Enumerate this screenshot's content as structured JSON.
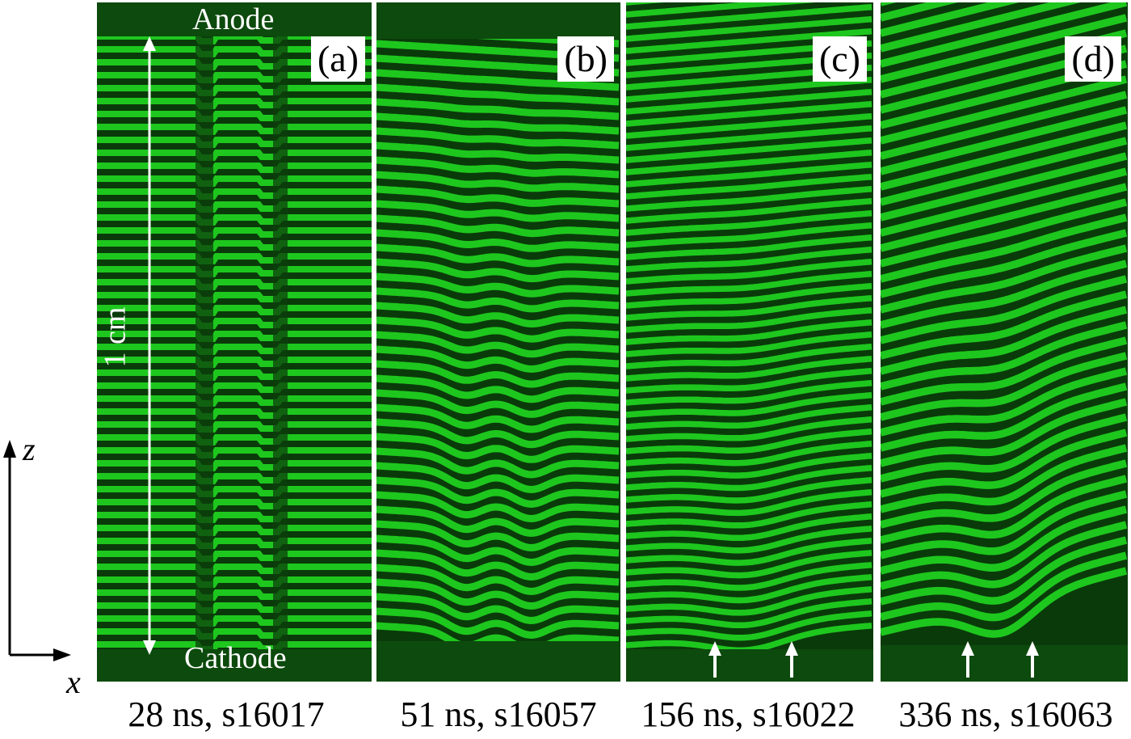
{
  "panels": [
    {
      "label": "(a)",
      "caption": "28 ns, s16017"
    },
    {
      "label": "(b)",
      "caption": "51 ns, s16057"
    },
    {
      "label": "(c)",
      "caption": "156 ns, s16022"
    },
    {
      "label": "(d)",
      "caption": "336 ns, s16063"
    }
  ],
  "overlay": {
    "anode": "Anode",
    "cathode": "Cathode",
    "scale": "1 cm"
  },
  "axes": {
    "z": "z",
    "x": "x"
  },
  "colors": {
    "fringe_bright": "#22e022",
    "fringe_dark": "#0a3a0a",
    "arrow": "#ffffff"
  }
}
